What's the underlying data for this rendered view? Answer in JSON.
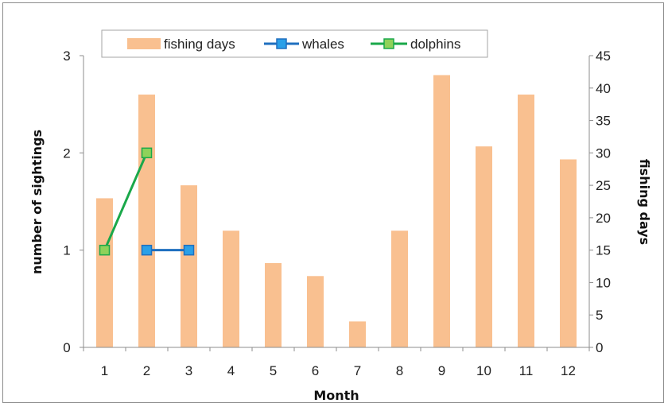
{
  "chart_data": {
    "type": "bar+line",
    "title": "",
    "xlabel": "Month",
    "ylabel_left": "number of sightings",
    "ylabel_right": "fishing days",
    "categories": [
      "1",
      "2",
      "3",
      "4",
      "5",
      "6",
      "7",
      "8",
      "9",
      "10",
      "11",
      "12"
    ],
    "ylim_left": [
      0,
      3
    ],
    "yticks_left": [
      "0",
      "1",
      "2",
      "3"
    ],
    "ylim_right": [
      0,
      45
    ],
    "yticks_right": [
      "0",
      "5",
      "10",
      "15",
      "20",
      "25",
      "30",
      "35",
      "40",
      "45"
    ],
    "grid": false,
    "legend_position": "top",
    "series": [
      {
        "name": "fishing days",
        "type": "bar",
        "axis": "right",
        "color": "#f9c090",
        "values": [
          23,
          39,
          25,
          18,
          13,
          11,
          4,
          18,
          42,
          31,
          39,
          29
        ]
      },
      {
        "name": "whales",
        "type": "line",
        "axis": "left",
        "color": "#1f6fbf",
        "marker_color": "#2aa0e8",
        "values": [
          null,
          1,
          1,
          null,
          null,
          null,
          null,
          null,
          null,
          null,
          null,
          null
        ]
      },
      {
        "name": "dolphins",
        "type": "line",
        "axis": "left",
        "color": "#1aa84a",
        "marker_color": "#8fd25a",
        "values": [
          1,
          2,
          null,
          null,
          null,
          null,
          null,
          null,
          null,
          null,
          null,
          null
        ]
      }
    ]
  }
}
